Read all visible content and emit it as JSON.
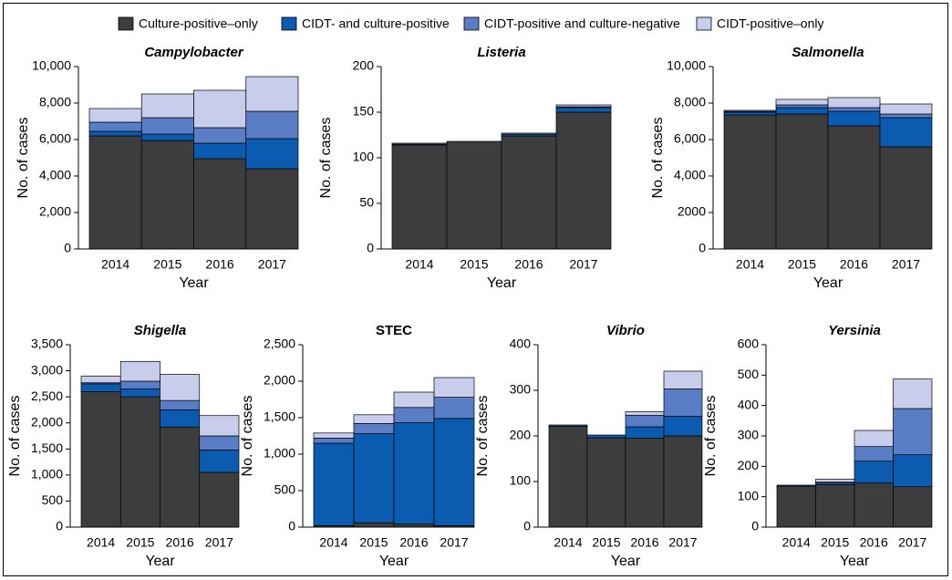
{
  "legend": [
    {
      "name": "Culture-positive–only",
      "color": "#3d3d3d"
    },
    {
      "name": "CIDT- and culture-positive",
      "color": "#0b5cb0"
    },
    {
      "name": "CIDT-positive and culture-negative",
      "color": "#5a7ec6"
    },
    {
      "name": "CIDT-positive–only",
      "color": "#c8cdeb"
    }
  ],
  "chart_data": [
    {
      "type": "bar",
      "stacked": true,
      "title": "Campylobacter",
      "title_italic": true,
      "ylabel": "No. of cases",
      "xlabel": "Year",
      "categories": [
        "2014",
        "2015",
        "2016",
        "2017"
      ],
      "series": [
        {
          "values": [
            6200,
            5950,
            4950,
            4400
          ]
        },
        {
          "values": [
            250,
            350,
            850,
            1650
          ]
        },
        {
          "values": [
            500,
            900,
            850,
            1500
          ]
        },
        {
          "values": [
            750,
            1300,
            2050,
            1900
          ]
        }
      ],
      "ylim": [
        0,
        10000
      ],
      "yticks": [
        0,
        {
          "value": 2000,
          "label": "2,000"
        },
        {
          "value": 4000,
          "label": "4,000"
        },
        {
          "value": 6000,
          "label": "6,000"
        },
        {
          "value": 8000,
          "label": "8,000"
        },
        {
          "value": 10000,
          "label": "10,000"
        }
      ]
    },
    {
      "type": "bar",
      "stacked": true,
      "title": "Listeria",
      "title_italic": true,
      "ylabel": "No. of cases",
      "xlabel": "Year",
      "categories": [
        "2014",
        "2015",
        "2016",
        "2017"
      ],
      "series": [
        {
          "values": [
            114,
            118,
            124,
            150
          ]
        },
        {
          "values": [
            1,
            0,
            2,
            5
          ]
        },
        {
          "values": [
            0,
            0,
            0,
            1
          ]
        },
        {
          "values": [
            1,
            0,
            1,
            2
          ]
        }
      ],
      "ylim": [
        0,
        200
      ],
      "yticks": [
        0,
        50,
        100,
        150,
        200
      ]
    },
    {
      "type": "bar",
      "stacked": true,
      "title": "Salmonella",
      "title_italic": true,
      "ylabel": "No. of cases",
      "xlabel": "Year",
      "categories": [
        "2014",
        "2015",
        "2016",
        "2017"
      ],
      "series": [
        {
          "values": [
            7350,
            7400,
            6750,
            5600
          ]
        },
        {
          "values": [
            150,
            350,
            800,
            1600
          ]
        },
        {
          "values": [
            50,
            150,
            200,
            200
          ]
        },
        {
          "values": [
            50,
            300,
            550,
            550
          ]
        }
      ],
      "ylim": [
        0,
        10000
      ],
      "yticks": [
        0,
        2000,
        {
          "value": 4000,
          "label": "4,000"
        },
        {
          "value": 6000,
          "label": "6,000"
        },
        {
          "value": 8000,
          "label": "8,000"
        },
        {
          "value": 10000,
          "label": "10,000"
        }
      ]
    },
    {
      "type": "bar",
      "stacked": true,
      "title": "Shigella",
      "title_italic": true,
      "ylabel": "No. of cases",
      "xlabel": "Year",
      "categories": [
        "2014",
        "2015",
        "2016",
        "2017"
      ],
      "series": [
        {
          "values": [
            2600,
            2500,
            1920,
            1050
          ]
        },
        {
          "values": [
            150,
            150,
            330,
            430
          ]
        },
        {
          "values": [
            20,
            150,
            180,
            270
          ]
        },
        {
          "values": [
            130,
            380,
            500,
            390
          ]
        }
      ],
      "ylim": [
        0,
        3500
      ],
      "yticks": [
        0,
        500,
        {
          "value": 1000,
          "label": "1,000"
        },
        {
          "value": 1500,
          "label": "1,500"
        },
        {
          "value": 2000,
          "label": "2,000"
        },
        {
          "value": 2500,
          "label": "2,500"
        },
        {
          "value": 3000,
          "label": "3,000"
        },
        {
          "value": 3500,
          "label": "3,500"
        }
      ]
    },
    {
      "type": "bar",
      "stacked": true,
      "title": "STEC",
      "title_italic": false,
      "ylabel": "No. of cases",
      "xlabel": "Year",
      "categories": [
        "2014",
        "2015",
        "2016",
        "2017"
      ],
      "series": [
        {
          "values": [
            20,
            60,
            40,
            20
          ]
        },
        {
          "values": [
            1130,
            1220,
            1390,
            1470
          ]
        },
        {
          "values": [
            70,
            140,
            210,
            290
          ]
        },
        {
          "values": [
            70,
            120,
            210,
            270
          ]
        }
      ],
      "ylim": [
        0,
        2500
      ],
      "yticks": [
        0,
        500,
        {
          "value": 1000,
          "label": "1,000"
        },
        {
          "value": 1500,
          "label": "1,500"
        },
        {
          "value": 2000,
          "label": "2,000"
        },
        {
          "value": 2500,
          "label": "2,500"
        }
      ]
    },
    {
      "type": "bar",
      "stacked": true,
      "title": "Vibrio",
      "title_italic": true,
      "ylabel": "No. of cases",
      "xlabel": "Year",
      "categories": [
        "2014",
        "2015",
        "2016",
        "2017"
      ],
      "series": [
        {
          "values": [
            221,
            196,
            195,
            200
          ]
        },
        {
          "values": [
            3,
            6,
            25,
            43
          ]
        },
        {
          "values": [
            0,
            0,
            25,
            60
          ]
        },
        {
          "values": [
            0,
            0,
            8,
            39
          ]
        }
      ],
      "ylim": [
        0,
        400
      ],
      "yticks": [
        0,
        100,
        200,
        300,
        400
      ]
    },
    {
      "type": "bar",
      "stacked": true,
      "title": "Yersinia",
      "title_italic": true,
      "ylabel": "No. of cases",
      "xlabel": "Year",
      "categories": [
        "2014",
        "2015",
        "2016",
        "2017"
      ],
      "series": [
        {
          "values": [
            135,
            140,
            145,
            133
          ]
        },
        {
          "values": [
            3,
            5,
            72,
            105
          ]
        },
        {
          "values": [
            0,
            3,
            48,
            152
          ]
        },
        {
          "values": [
            0,
            10,
            53,
            97
          ]
        }
      ],
      "ylim": [
        0,
        600
      ],
      "yticks": [
        0,
        100,
        200,
        300,
        400,
        500,
        600
      ]
    }
  ]
}
